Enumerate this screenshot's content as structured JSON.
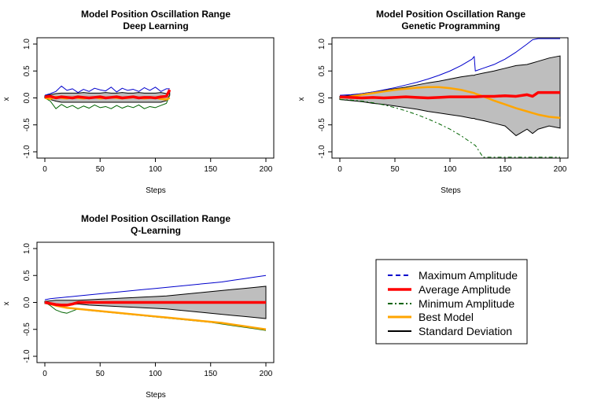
{
  "colors": {
    "max": "#0000cc",
    "avg": "#ff0000",
    "min": "#006400",
    "best": "#ffa500",
    "sd": "#000000",
    "band": "#bebebe"
  },
  "legend": {
    "items": [
      {
        "label": "Maximum Amplitude",
        "color": "#0000cc",
        "style": "dashed"
      },
      {
        "label": "Average Amplitude",
        "color": "#ff0000",
        "style": "solid"
      },
      {
        "label": "Minimum Amplitude",
        "color": "#006400",
        "style": "dashdot"
      },
      {
        "label": "Best Model",
        "color": "#ffa500",
        "style": "solid"
      },
      {
        "label": "Standard Deviation",
        "color": "#000000",
        "style": "solid"
      }
    ]
  },
  "chart_data": [
    {
      "type": "line",
      "title": "Model Position Oscillation Range",
      "subtitle": "Deep Learning",
      "xlabel": "Steps",
      "ylabel": "x",
      "xlim": [
        0,
        200
      ],
      "ylim": [
        -1,
        1
      ],
      "xticks": [
        0,
        50,
        100,
        150,
        200
      ],
      "yticks": [
        -1.0,
        -0.5,
        0.0,
        0.5,
        1.0
      ],
      "x": [
        0,
        5,
        10,
        15,
        20,
        25,
        30,
        35,
        40,
        45,
        50,
        55,
        60,
        65,
        70,
        75,
        80,
        85,
        90,
        95,
        100,
        105,
        110,
        113
      ],
      "series": [
        {
          "name": "Maximum Amplitude",
          "values": [
            0.05,
            0.08,
            0.12,
            0.22,
            0.14,
            0.17,
            0.1,
            0.16,
            0.12,
            0.18,
            0.15,
            0.13,
            0.2,
            0.11,
            0.18,
            0.14,
            0.16,
            0.12,
            0.19,
            0.14,
            0.2,
            0.12,
            0.17,
            0.17
          ]
        },
        {
          "name": "Average Amplitude",
          "values": [
            0.02,
            0.03,
            0.0,
            0.02,
            0.01,
            0.0,
            0.02,
            0.01,
            0.0,
            0.01,
            0.02,
            0.0,
            0.01,
            0.02,
            0.0,
            0.01,
            0.02,
            0.0,
            0.01,
            0.01,
            0.0,
            0.02,
            0.03,
            0.15
          ]
        },
        {
          "name": "Minimum Amplitude",
          "values": [
            0.0,
            -0.06,
            -0.2,
            -0.12,
            -0.18,
            -0.14,
            -0.2,
            -0.15,
            -0.19,
            -0.13,
            -0.18,
            -0.16,
            -0.2,
            -0.14,
            -0.19,
            -0.15,
            -0.18,
            -0.13,
            -0.2,
            -0.16,
            -0.18,
            -0.14,
            -0.1,
            0.05
          ]
        },
        {
          "name": "Best Model",
          "values": [
            0.0,
            -0.02,
            0.02,
            0.0,
            -0.01,
            0.01,
            0.0,
            -0.01,
            0.0,
            0.01,
            -0.01,
            0.0,
            0.01,
            0.0,
            -0.01,
            0.0,
            0.01,
            0.0,
            -0.01,
            0.0,
            0.01,
            -0.02,
            -0.03,
            0.0
          ]
        },
        {
          "name": "Standard Deviation",
          "upper": [
            0.04,
            0.06,
            0.08,
            0.09,
            0.09,
            0.09,
            0.09,
            0.1,
            0.09,
            0.09,
            0.09,
            0.1,
            0.09,
            0.09,
            0.1,
            0.09,
            0.09,
            0.1,
            0.09,
            0.09,
            0.09,
            0.1,
            0.08,
            0.1
          ],
          "lower": [
            0.0,
            -0.03,
            -0.06,
            -0.08,
            -0.08,
            -0.08,
            -0.08,
            -0.08,
            -0.08,
            -0.08,
            -0.08,
            -0.08,
            -0.08,
            -0.08,
            -0.08,
            -0.08,
            -0.08,
            -0.08,
            -0.08,
            -0.08,
            -0.08,
            -0.08,
            -0.05,
            0.05
          ]
        }
      ]
    },
    {
      "type": "line",
      "title": "Model Position Oscillation Range",
      "subtitle": "Genetic Programming",
      "xlabel": "Steps",
      "ylabel": "x",
      "xlim": [
        0,
        200
      ],
      "ylim": [
        -1,
        1
      ],
      "xticks": [
        0,
        50,
        100,
        150,
        200
      ],
      "yticks": [
        -1.0,
        -0.5,
        0.0,
        0.5,
        1.0
      ],
      "x": [
        0,
        10,
        20,
        30,
        40,
        50,
        60,
        70,
        80,
        90,
        100,
        110,
        120,
        122,
        123,
        130,
        140,
        150,
        160,
        170,
        175,
        180,
        190,
        200
      ],
      "series": [
        {
          "name": "Maximum Amplitude",
          "values": [
            0.05,
            0.06,
            0.08,
            0.11,
            0.15,
            0.19,
            0.24,
            0.29,
            0.35,
            0.42,
            0.5,
            0.6,
            0.72,
            0.77,
            0.5,
            0.55,
            0.62,
            0.72,
            0.85,
            1.0,
            1.08,
            1.1,
            1.1,
            1.1
          ]
        },
        {
          "name": "Average Amplitude",
          "values": [
            0.02,
            0.01,
            0.0,
            0.01,
            0.0,
            0.01,
            0.02,
            0.01,
            0.0,
            0.01,
            0.02,
            0.02,
            0.02,
            0.02,
            0.02,
            0.03,
            0.03,
            0.04,
            0.03,
            0.06,
            0.03,
            0.1,
            0.1,
            0.1
          ]
        },
        {
          "name": "Minimum Amplitude",
          "values": [
            -0.03,
            -0.04,
            -0.06,
            -0.09,
            -0.13,
            -0.18,
            -0.24,
            -0.31,
            -0.39,
            -0.48,
            -0.58,
            -0.7,
            -0.84,
            -0.87,
            -0.88,
            -1.1,
            -1.1,
            -1.1,
            -1.1,
            -1.1,
            -1.1,
            -1.1,
            -1.1,
            -1.1
          ]
        },
        {
          "name": "Best Model",
          "values": [
            0.0,
            0.03,
            0.06,
            0.09,
            0.12,
            0.15,
            0.17,
            0.19,
            0.2,
            0.2,
            0.18,
            0.15,
            0.1,
            0.09,
            0.08,
            0.03,
            -0.05,
            -0.12,
            -0.19,
            -0.25,
            -0.28,
            -0.31,
            -0.35,
            -0.37
          ]
        },
        {
          "name": "Standard Deviation",
          "upper": [
            0.03,
            0.05,
            0.08,
            0.11,
            0.14,
            0.17,
            0.2,
            0.24,
            0.28,
            0.31,
            0.35,
            0.39,
            0.42,
            0.42,
            0.43,
            0.46,
            0.5,
            0.55,
            0.6,
            0.62,
            0.65,
            0.68,
            0.74,
            0.78
          ]
        },
        {
          "name": "Standard Deviation (lower)",
          "values": [
            -0.03,
            -0.05,
            -0.07,
            -0.1,
            -0.12,
            -0.15,
            -0.18,
            -0.21,
            -0.25,
            -0.28,
            -0.31,
            -0.34,
            -0.38,
            -0.38,
            -0.39,
            -0.42,
            -0.47,
            -0.52,
            -0.7,
            -0.58,
            -0.66,
            -0.58,
            -0.52,
            -0.56
          ]
        }
      ]
    },
    {
      "type": "line",
      "title": "Model Position Oscillation Range",
      "subtitle": "Q-Learning",
      "xlabel": "Steps",
      "ylabel": "x",
      "xlim": [
        0,
        200
      ],
      "ylim": [
        -1,
        1
      ],
      "xticks": [
        0,
        50,
        100,
        150,
        200
      ],
      "yticks": [
        -1.0,
        -0.5,
        0.0,
        0.5,
        1.0
      ],
      "x": [
        0,
        5,
        10,
        15,
        20,
        25,
        30,
        40,
        50,
        60,
        70,
        80,
        90,
        100,
        110,
        120,
        130,
        140,
        150,
        160,
        170,
        180,
        190,
        200
      ],
      "series": [
        {
          "name": "Maximum Amplitude",
          "values": [
            0.05,
            0.07,
            0.08,
            0.09,
            0.1,
            0.11,
            0.12,
            0.14,
            0.16,
            0.18,
            0.2,
            0.22,
            0.24,
            0.26,
            0.28,
            0.3,
            0.32,
            0.34,
            0.36,
            0.38,
            0.41,
            0.44,
            0.47,
            0.5
          ]
        },
        {
          "name": "Average Amplitude",
          "values": [
            0.0,
            -0.02,
            -0.04,
            -0.05,
            -0.05,
            -0.03,
            0.0,
            0.0,
            0.0,
            0.0,
            0.0,
            0.0,
            0.0,
            0.0,
            0.0,
            0.0,
            0.0,
            0.0,
            0.0,
            0.0,
            0.0,
            0.0,
            0.0,
            0.0
          ]
        },
        {
          "name": "Minimum Amplitude",
          "values": [
            0.0,
            -0.06,
            -0.14,
            -0.18,
            -0.2,
            -0.16,
            -0.12,
            -0.15,
            -0.17,
            -0.19,
            -0.21,
            -0.23,
            -0.25,
            -0.27,
            -0.29,
            -0.31,
            -0.33,
            -0.35,
            -0.37,
            -0.4,
            -0.43,
            -0.46,
            -0.49,
            -0.52
          ]
        },
        {
          "name": "Best Model",
          "values": [
            0.0,
            -0.03,
            -0.06,
            -0.08,
            -0.1,
            -0.11,
            -0.12,
            -0.14,
            -0.16,
            -0.18,
            -0.2,
            -0.22,
            -0.24,
            -0.26,
            -0.28,
            -0.3,
            -0.32,
            -0.34,
            -0.36,
            -0.38,
            -0.41,
            -0.44,
            -0.47,
            -0.5
          ]
        },
        {
          "name": "Standard Deviation",
          "upper": [
            0.02,
            0.03,
            0.04,
            0.04,
            0.04,
            0.04,
            0.04,
            0.05,
            0.06,
            0.07,
            0.08,
            0.09,
            0.1,
            0.11,
            0.12,
            0.14,
            0.16,
            0.18,
            0.2,
            0.22,
            0.24,
            0.26,
            0.28,
            0.3
          ],
          "lower": [
            -0.02,
            -0.03,
            -0.05,
            -0.05,
            -0.05,
            -0.04,
            -0.03,
            -0.05,
            -0.06,
            -0.07,
            -0.08,
            -0.09,
            -0.1,
            -0.11,
            -0.12,
            -0.14,
            -0.16,
            -0.18,
            -0.2,
            -0.22,
            -0.24,
            -0.26,
            -0.28,
            -0.3
          ]
        }
      ]
    }
  ]
}
